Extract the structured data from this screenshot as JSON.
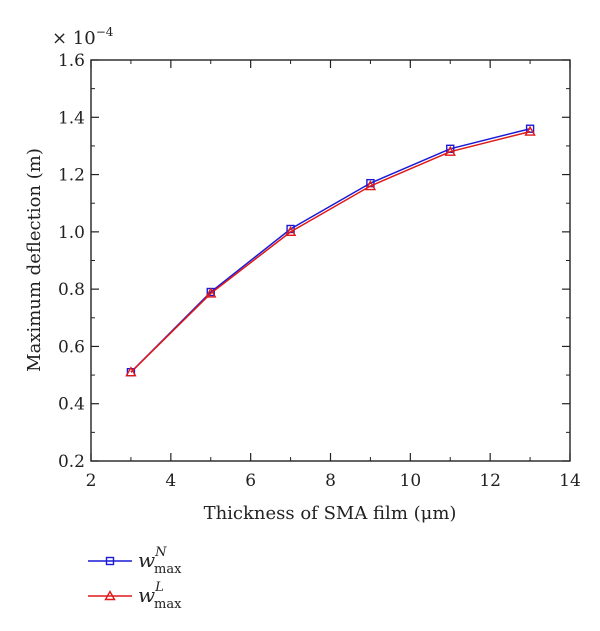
{
  "chart_data": {
    "type": "line",
    "xlabel": "Thickness of SMA film (μm)",
    "ylabel": "Maximum deflection (m)",
    "y_multiplier_base": "× 10",
    "y_multiplier_exp": "−4",
    "xlim": [
      2,
      14
    ],
    "ylim": [
      0.2,
      1.6
    ],
    "x_ticks": [
      2,
      4,
      6,
      8,
      10,
      12,
      14
    ],
    "y_ticks": [
      "0.2",
      "0.4",
      "0.6",
      "0.8",
      "1.0",
      "1.2",
      "1.4",
      "1.6"
    ],
    "y_tick_values": [
      0.2,
      0.4,
      0.6,
      0.8,
      1.0,
      1.2,
      1.4,
      1.6
    ],
    "x": [
      3,
      5,
      7,
      9,
      11,
      13
    ],
    "grid": false,
    "legend_position": "bottom-left, below plot",
    "series": [
      {
        "name": "w_max^N",
        "legend_base": "w",
        "legend_sub": "max",
        "legend_sup": "N",
        "marker": "square",
        "color": "#1a1ad6",
        "values": [
          0.51,
          0.79,
          1.01,
          1.17,
          1.29,
          1.36
        ]
      },
      {
        "name": "w_max^L",
        "legend_base": "w",
        "legend_sub": "max",
        "legend_sup": "L",
        "marker": "triangle",
        "color": "#e01818",
        "values": [
          0.51,
          0.785,
          1.0,
          1.16,
          1.28,
          1.35
        ]
      }
    ]
  }
}
